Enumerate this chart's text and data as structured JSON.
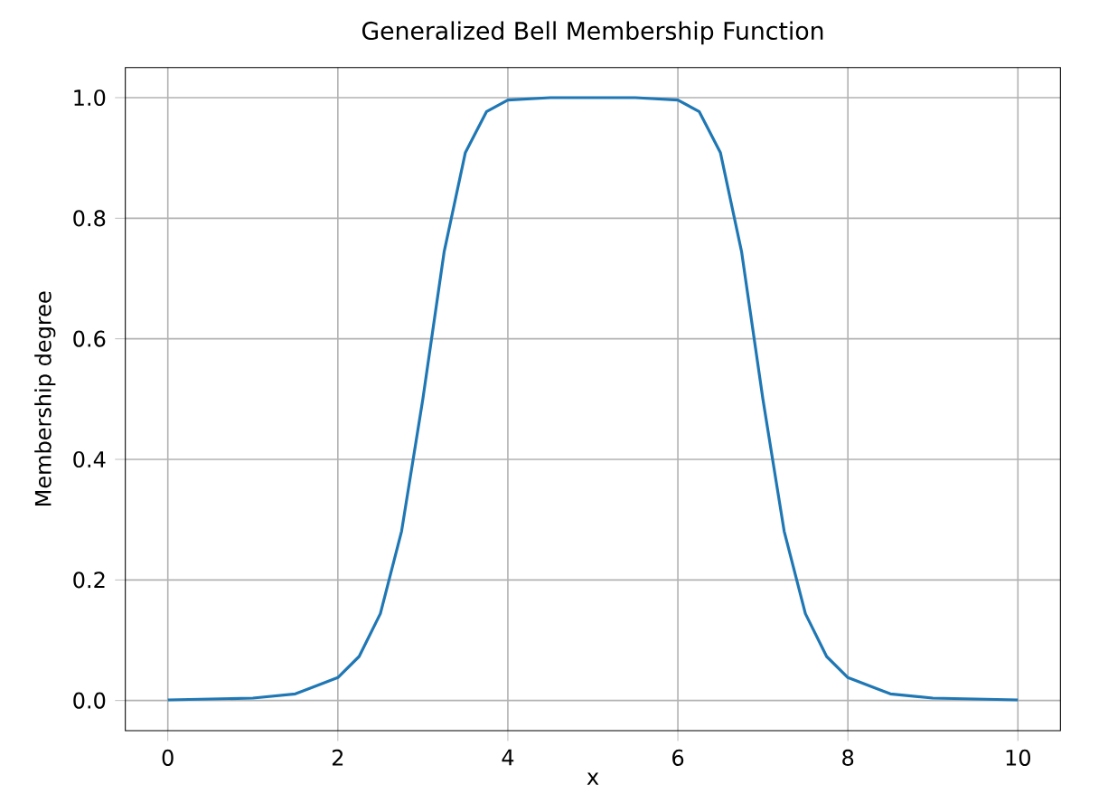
{
  "chart_data": {
    "type": "line",
    "title": "Generalized Bell Membership Function",
    "xlabel": "x",
    "ylabel": "Membership degree",
    "x": [
      0,
      1,
      1.5,
      2,
      2.25,
      2.5,
      2.75,
      3,
      3.25,
      3.5,
      3.75,
      4,
      4.5,
      5,
      5.5,
      6,
      6.25,
      6.5,
      6.75,
      7,
      7.25,
      7.5,
      7.75,
      8,
      8.5,
      9,
      10
    ],
    "series": [
      {
        "color": "#1f77b4",
        "values": [
          0.001,
          0.004,
          0.011,
          0.038,
          0.073,
          0.144,
          0.281,
          0.5,
          0.744,
          0.909,
          0.977,
          0.996,
          1.0,
          1.0,
          1.0,
          0.996,
          0.977,
          0.909,
          0.744,
          0.5,
          0.281,
          0.144,
          0.073,
          0.038,
          0.011,
          0.004,
          0.001
        ]
      }
    ],
    "xlim": [
      -0.5,
      10.5
    ],
    "ylim": [
      -0.05,
      1.05
    ],
    "xticks": [
      0,
      2,
      4,
      6,
      8,
      10
    ],
    "yticks": [
      {
        "value": 0,
        "label": "0.0"
      },
      {
        "value": 0.2,
        "label": "0.2"
      },
      {
        "value": 0.4,
        "label": "0.4"
      },
      {
        "value": 0.6,
        "label": "0.6"
      },
      {
        "value": 0.8,
        "label": "0.8"
      },
      {
        "value": 1,
        "label": "1.0"
      }
    ],
    "grid": true
  }
}
